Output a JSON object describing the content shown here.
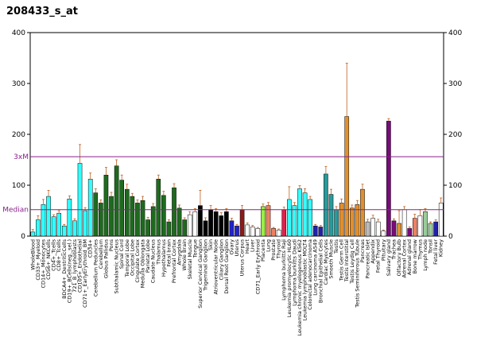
{
  "chart_data": {
    "type": "bar",
    "title": "208433_s_at",
    "categories": [
      "WholeBlood",
      "CD33+_Myeloid",
      "CD14+_Monocytes",
      "CD56+_NKCells",
      "CD4+_Tcells",
      "CD8+_Tcells",
      "BDCA4+_DentriticCells",
      "CD19+_BCells(neg._sel.)",
      "721_B_lymphoblasts",
      "CD105+_Endothelial",
      "CD71+_EarlyErythroid_BM",
      "CD34+",
      "Cerebellum Peduncles",
      "Cerebellum",
      "Globus Pallidus",
      "Pons",
      "Subthalamic Nucleus",
      "Spinal Cord",
      "Temporal Lobe",
      "Occipital Lobe",
      "Cingulate Cortex",
      "Medulla Oblongata",
      "Parietal Lobe",
      "Caudate Nucleus",
      "Thalamus",
      "Hypothalamus",
      "Fetal brain",
      "Prefrontal Cortex",
      "Amygdala",
      "Whole Brain",
      "Skeletal Muscle",
      "Tongue",
      "Superior Cervical Ganglion",
      "Trigeminal Ganglion",
      "Skin",
      "Atrioventricular Node",
      "Ciliary Ganglion",
      "Dorsal Root Ganglion",
      "Ovary",
      "Uterus",
      "Uterus Corpus",
      "Heart",
      "Liver",
      "CD71_Early Erythroid",
      "Placenta",
      "Lung",
      "Prostate",
      "Thyroid",
      "Lymphoma burkitts Raji",
      "Leukemia promyelocytic HL60",
      "Lymphoma burkitts Daudi",
      "Leukemia chronic myelogenous K562",
      "Leukemia lymphoblastic MOLT4",
      "Colorectal adenocarcinoma",
      "Lung carcinoma A549",
      "Bronchial Epithelial Cells",
      "Cardiac Myocytes",
      "Smooth Muscle",
      "Testis",
      "Testis Germ Cell",
      "Testis Interstitial",
      "Testis Leydig Cell",
      "Testis Seminiferous Tubule",
      "Pancreas",
      "Pancreatic Islet",
      "Appendix",
      "Fetal Thyroid",
      "Pituitary",
      "Salivary gland",
      "Trachea",
      "Olfactory Bulb",
      "Adrenal Cortex",
      "Adrenal gland",
      "Bone marrow",
      "Thymus",
      "Lymph node",
      "Tonsil",
      "Fetal liver",
      "Kidney"
    ],
    "values": [
      8,
      32,
      62,
      78,
      38,
      45,
      20,
      73,
      30,
      143,
      50,
      112,
      85,
      65,
      120,
      78,
      138,
      110,
      92,
      78,
      65,
      70,
      32,
      58,
      112,
      80,
      28,
      95,
      55,
      32,
      42,
      48,
      60,
      30,
      52,
      48,
      40,
      48,
      30,
      20,
      52,
      22,
      18,
      15,
      58,
      60,
      15,
      12,
      52,
      72,
      60,
      93,
      85,
      72,
      20,
      18,
      122,
      82,
      52,
      65,
      235,
      55,
      62,
      92,
      28,
      35,
      28,
      10,
      226,
      30,
      25,
      52,
      15,
      35,
      40,
      48,
      25,
      28,
      65
    ],
    "errors": [
      5,
      8,
      10,
      12,
      4,
      5,
      3,
      6,
      4,
      37,
      6,
      12,
      8,
      6,
      15,
      8,
      12,
      10,
      10,
      6,
      6,
      8,
      5,
      6,
      8,
      8,
      4,
      8,
      6,
      4,
      6,
      6,
      30,
      6,
      8,
      6,
      6,
      6,
      5,
      3,
      8,
      4,
      3,
      2,
      5,
      6,
      2,
      2,
      5,
      25,
      6,
      6,
      8,
      6,
      3,
      3,
      15,
      10,
      6,
      8,
      105,
      6,
      8,
      10,
      5,
      6,
      5,
      2,
      5,
      4,
      25,
      6,
      3,
      8,
      12,
      6,
      3,
      4,
      10
    ],
    "colors": [
      "#33ffff",
      "#33ffff",
      "#33ffff",
      "#33ffff",
      "#33ffff",
      "#33ffff",
      "#33ffff",
      "#33ffff",
      "#33ffff",
      "#33ffff",
      "#33ffff",
      "#33ffff",
      "#1e6b1e",
      "#1e6b1e",
      "#1e6b1e",
      "#1e6b1e",
      "#1e6b1e",
      "#1e6b1e",
      "#1e6b1e",
      "#1e6b1e",
      "#1e6b1e",
      "#1e6b1e",
      "#1e6b1e",
      "#1e6b1e",
      "#1e6b1e",
      "#1e6b1e",
      "#1e6b1e",
      "#1e6b1e",
      "#1e6b1e",
      "#1e6b1e",
      "#ffffff",
      "#ffffff",
      "#000000",
      "#000000",
      "#000000",
      "#000000",
      "#000000",
      "#000000",
      "#2222cc",
      "#2222cc",
      "#8b1a1a",
      "#ffffff",
      "#ffffff",
      "#ffffff",
      "#99ee44",
      "#f08060",
      "#f08060",
      "#ffffff",
      "#e0204a",
      "#33ffff",
      "#33ffff",
      "#33ffff",
      "#33ffff",
      "#33ffff",
      "#2222aa",
      "#2222aa",
      "#2a9a9a",
      "#2a9a9a",
      "#2a9a9a",
      "#e09030",
      "#e09030",
      "#e09030",
      "#e09030",
      "#e09030",
      "#bbbbbb",
      "#ffffff",
      "#ffffff",
      "#ffffff",
      "#7a0a7a",
      "#7a0a7a",
      "#e09030",
      "#ffffff",
      "#7a0a7a",
      "#f08060",
      "#ffffff",
      "#99cc99",
      "#99cc99",
      "#2222aa",
      "#ffffff"
    ],
    "ylim": [
      0,
      400
    ],
    "yticks": [
      0,
      100,
      200,
      300,
      400
    ],
    "y2lim": [
      0,
      400
    ],
    "y2ticks": [
      0,
      100,
      200,
      300,
      400
    ],
    "reference_lines": [
      {
        "label": "3xM",
        "value": 156
      },
      {
        "label": "Median",
        "value": 52
      }
    ],
    "reference_color": "#882288"
  }
}
